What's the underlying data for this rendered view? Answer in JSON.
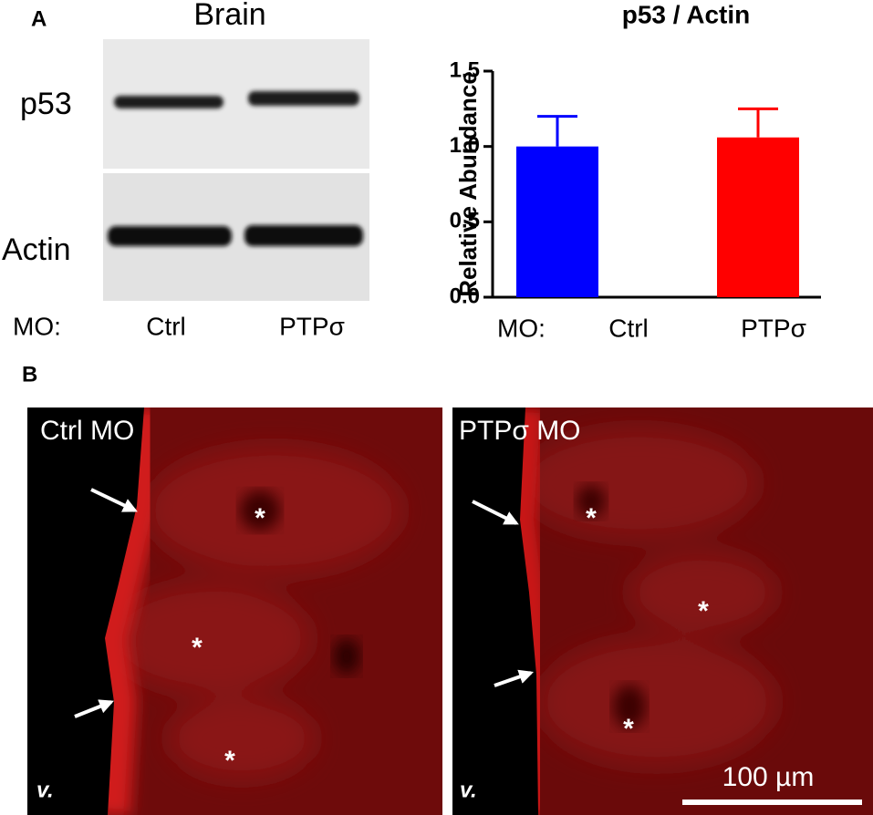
{
  "panels": [
    "A",
    "B"
  ],
  "blot": {
    "title": "Brain",
    "rows": [
      "p53",
      "Actin"
    ],
    "lane_prefix": "MO:",
    "lanes": [
      "Ctrl",
      "PTPσ"
    ]
  },
  "chart_data": {
    "type": "bar",
    "title": "p53 / Actin",
    "y_label": "Relative Abundance",
    "x_prefix": "MO:",
    "categories": [
      "Ctrl",
      "PTPσ"
    ],
    "values": [
      1.0,
      1.06
    ],
    "errors": [
      0.2,
      0.19
    ],
    "colors": [
      "#0000ff",
      "#ff0000"
    ],
    "ylim": [
      0,
      1.5
    ],
    "yticks": [
      {
        "value": 0,
        "label": "0.0"
      },
      {
        "value": 0.5,
        "label": "0.5"
      },
      {
        "value": 1,
        "label": "1.0"
      },
      {
        "value": 1.5,
        "label": "1.5"
      }
    ]
  },
  "micrographs": [
    {
      "label": "Ctrl MO",
      "ventricle": "v."
    },
    {
      "label": "PTPσ MO",
      "ventricle": "v."
    }
  ],
  "asterisk": "*",
  "scale_bar": "100 µm"
}
